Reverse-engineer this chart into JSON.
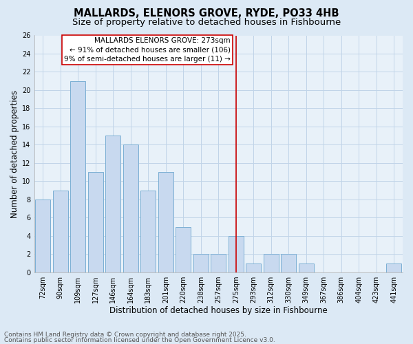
{
  "title": "MALLARDS, ELENORS GROVE, RYDE, PO33 4HB",
  "subtitle": "Size of property relative to detached houses in Fishbourne",
  "xlabel": "Distribution of detached houses by size in Fishbourne",
  "ylabel": "Number of detached properties",
  "categories": [
    "72sqm",
    "90sqm",
    "109sqm",
    "127sqm",
    "146sqm",
    "164sqm",
    "183sqm",
    "201sqm",
    "220sqm",
    "238sqm",
    "257sqm",
    "275sqm",
    "293sqm",
    "312sqm",
    "330sqm",
    "349sqm",
    "367sqm",
    "386sqm",
    "404sqm",
    "423sqm",
    "441sqm"
  ],
  "values": [
    8,
    9,
    21,
    11,
    15,
    14,
    9,
    11,
    5,
    2,
    2,
    4,
    1,
    2,
    2,
    1,
    0,
    0,
    0,
    0,
    1
  ],
  "bar_color": "#c8d9ef",
  "bar_edge_color": "#7bafd4",
  "vline_x_index": 11,
  "vline_color": "#cc0000",
  "annotation_lines": [
    "MALLARDS ELENORS GROVE: 273sqm",
    "← 91% of detached houses are smaller (106)",
    "9% of semi-detached houses are larger (11) →"
  ],
  "annotation_box_color": "#ffffff",
  "annotation_box_edge": "#cc0000",
  "ylim": [
    0,
    26
  ],
  "yticks": [
    0,
    2,
    4,
    6,
    8,
    10,
    12,
    14,
    16,
    18,
    20,
    22,
    24,
    26
  ],
  "grid_color": "#c0d4e8",
  "background_color": "#dce9f5",
  "plot_bg_color": "#e8f1f9",
  "footnote_line1": "Contains HM Land Registry data © Crown copyright and database right 2025.",
  "footnote_line2": "Contains public sector information licensed under the Open Government Licence v3.0.",
  "title_fontsize": 10.5,
  "subtitle_fontsize": 9.5,
  "tick_fontsize": 7,
  "label_fontsize": 8.5,
  "footnote_fontsize": 6.5,
  "ann_fontsize": 7.5
}
